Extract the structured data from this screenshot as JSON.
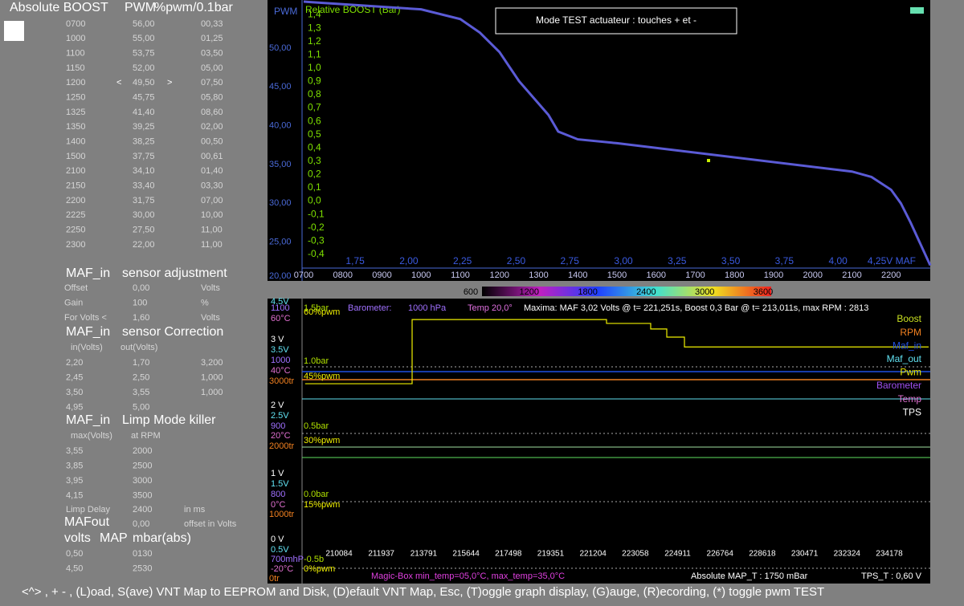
{
  "boost_table": {
    "headers": [
      "Absolute BOOST",
      "PWM",
      "%pwm/0.1bar"
    ],
    "selector": [
      "<",
      ">"
    ],
    "rows": [
      [
        "0700",
        "56,00",
        "00,33"
      ],
      [
        "1000",
        "55,00",
        "01,25"
      ],
      [
        "1100",
        "53,75",
        "03,50"
      ],
      [
        "1150",
        "52,00",
        "05,00"
      ],
      [
        "1200",
        "49,50",
        "07,50"
      ],
      [
        "1250",
        "45,75",
        "05,80"
      ],
      [
        "1325",
        "41,40",
        "08,60"
      ],
      [
        "1350",
        "39,25",
        "02,00"
      ],
      [
        "1400",
        "38,25",
        "00,50"
      ],
      [
        "1500",
        "37,75",
        "00,61"
      ],
      [
        "2100",
        "34,10",
        "01,40"
      ],
      [
        "2150",
        "33,40",
        "03,30"
      ],
      [
        "2200",
        "31,75",
        "07,00"
      ],
      [
        "2225",
        "30,00",
        "10,00"
      ],
      [
        "2250",
        "27,50",
        "11,00"
      ],
      [
        "2300",
        "22,00",
        "11,00"
      ]
    ]
  },
  "maf_adjust": {
    "title": [
      "MAF_in",
      "sensor adjustment"
    ],
    "rows": [
      [
        "Offset",
        "0,00",
        "Volts"
      ],
      [
        "Gain",
        "100",
        "%"
      ],
      [
        "For Volts <",
        "1,60",
        "Volts"
      ]
    ]
  },
  "maf_correction": {
    "title": [
      "MAF_in",
      "sensor Correction"
    ],
    "headers": [
      "in(Volts)",
      "out(Volts)"
    ],
    "rows": [
      [
        "2,20",
        "1,70",
        "3,200"
      ],
      [
        "2,45",
        "2,50",
        "1,000"
      ],
      [
        "3,50",
        "3,55",
        "1,000"
      ],
      [
        "4,95",
        "5,00"
      ]
    ]
  },
  "limp": {
    "title": [
      "MAF_in",
      "Limp Mode killer"
    ],
    "headers": [
      "max(Volts)",
      "at RPM"
    ],
    "rows": [
      [
        "3,55",
        "2000"
      ],
      [
        "3,85",
        "2500"
      ],
      [
        "3,95",
        "3000"
      ],
      [
        "4,15",
        "3500"
      ]
    ],
    "delay": [
      "Limp Delay",
      "2400",
      "in ms"
    ]
  },
  "maf_out": [
    "MAFout",
    "0,00",
    "offset in Volts"
  ],
  "map": {
    "title": [
      "volts",
      "MAP",
      "mbar(abs)"
    ],
    "rows": [
      [
        "0,50",
        "0130"
      ],
      [
        "4,50",
        "2530"
      ]
    ]
  },
  "footer": "<^> , + - , (L)oad, S(ave) VNT Map to EEPROM and Disk, (D)efault VNT Map, Esc, (T)oggle graph display, (G)auge, (R)ecording, (*) toggle pwm TEST",
  "top_chart": {
    "type": "line",
    "mode_box": "Mode TEST actuateur : touches + et  -",
    "y_label": "PWM",
    "y2_label": "Relative BOOST (Bar)",
    "color": "#5b5bd6",
    "x": [
      700,
      1000,
      1100,
      1150,
      1200,
      1250,
      1325,
      1350,
      1400,
      1500,
      2100,
      2150,
      2200,
      2225,
      2250,
      2300
    ],
    "values": [
      56,
      55,
      53.75,
      52,
      49.5,
      45.75,
      41.4,
      39.25,
      38.25,
      37.75,
      34.1,
      33.4,
      31.75,
      30,
      27.5,
      22
    ],
    "xlim": [
      700,
      2300
    ],
    "xticks": [
      {
        "value": 700,
        "label": "0700"
      },
      {
        "value": 800,
        "label": "0800"
      },
      {
        "value": 900,
        "label": "0900"
      },
      1000,
      1100,
      1200,
      1300,
      1400,
      1500,
      1600,
      1700,
      1800,
      1900,
      2000,
      2100,
      2200
    ],
    "x2lim": [
      1.51,
      4.43
    ],
    "x2ticks": [
      {
        "value": 1.75,
        "label": "1,75"
      },
      {
        "value": 2,
        "label": "2,00"
      },
      {
        "value": 2.25,
        "label": "2,25"
      },
      {
        "value": 2.5,
        "label": "2,50"
      },
      {
        "value": 2.75,
        "label": "2,75"
      },
      {
        "value": 3,
        "label": "3,00"
      },
      {
        "value": 3.25,
        "label": "3,25"
      },
      {
        "value": 3.5,
        "label": "3,50"
      },
      {
        "value": 3.75,
        "label": "3,75"
      },
      {
        "value": 4,
        "label": "4,00"
      },
      {
        "value": 4.25,
        "label": "4,25V MAF"
      }
    ],
    "ylim": [
      20,
      56
    ],
    "yticks": [
      {
        "value": 20,
        "label": "20,00"
      },
      {
        "value": 25,
        "label": "25,00"
      },
      {
        "value": 30,
        "label": "30,00"
      },
      {
        "value": 35,
        "label": "35,00"
      },
      {
        "value": 40,
        "label": "40,00"
      },
      {
        "value": 45,
        "label": "45,00"
      },
      {
        "value": 50,
        "label": "50,00"
      }
    ],
    "y2lim": [
      -0.6,
      1.5
    ],
    "y2ticks": [
      {
        "value": 1.4,
        "label": "1,4"
      },
      {
        "value": 1.3,
        "label": "1,3"
      },
      {
        "value": 1.2,
        "label": "1,2"
      },
      {
        "value": 1.1,
        "label": "1,1"
      },
      {
        "value": 1.0,
        "label": "1,0"
      },
      {
        "value": 0.9,
        "label": "0,9"
      },
      {
        "value": 0.8,
        "label": "0,8"
      },
      {
        "value": 0.7,
        "label": "0,7"
      },
      {
        "value": 0.6,
        "label": "0,6"
      },
      {
        "value": 0.5,
        "label": "0,5"
      },
      {
        "value": 0.4,
        "label": "0,4"
      },
      {
        "value": 0.3,
        "label": "0,3"
      },
      {
        "value": 0.2,
        "label": "0,2"
      },
      {
        "value": 0.1,
        "label": "0,1"
      },
      {
        "value": 0,
        "label": "0,0"
      },
      {
        "value": -0.1,
        "label": "-0,1"
      },
      {
        "value": -0.2,
        "label": "-0,2"
      },
      {
        "value": -0.3,
        "label": "-0,3"
      },
      {
        "value": -0.4,
        "label": "-0,4"
      }
    ]
  },
  "colorbar": {
    "ticks": [
      600,
      1200,
      1800,
      2400,
      3000,
      3600
    ]
  },
  "bottom_chart": {
    "header": [
      "Barometer:",
      "1000 hPa",
      "Temp 20,0°",
      "Maxima:  MAF 3,02 Volts @ t=  221,251s, Boost 0,3 Bar @ t=  213,011s, max RPM : 2813"
    ],
    "footer": [
      "Magic-Box  min_temp=05,0°C, max_temp=35,0°C",
      "Absolute MAP_T : 1750 mBar",
      "TPS_T : 0,60 V"
    ],
    "legend": [
      {
        "name": "Boost",
        "color": "#c8e020"
      },
      {
        "name": "RPM",
        "color": "#f08020"
      },
      {
        "name": "Maf_in",
        "color": "#2050e0"
      },
      {
        "name": "Maf_out",
        "color": "#60e0f0"
      },
      {
        "name": "Pwm",
        "color": "#f0f000"
      },
      {
        "name": "Barometer",
        "color": "#a050f0"
      },
      {
        "name": "Temp",
        "color": "#e070d0"
      },
      {
        "name": "TPS",
        "color": "#ffffff"
      }
    ],
    "scales": {
      "tps": [
        "3 V",
        "2 V",
        "1 V",
        "0 V"
      ],
      "maf_out": [
        "4.5V",
        "3.5V",
        "2.5V",
        "1.5V",
        "0.5V"
      ],
      "barometer": [
        "1100",
        "1000",
        "900",
        "800",
        "700mhP"
      ],
      "temp": [
        "60°C",
        "40°C",
        "20°C",
        "0°C",
        "-20°C"
      ],
      "rpm": [
        "3000tr",
        "2000tr",
        "1000tr",
        "0tr"
      ],
      "boost": [
        "1.5bar",
        "1.0bar",
        "0.5bar",
        "0.0bar",
        "-0.5b"
      ]
    },
    "pwm_trace": {
      "color": "#f0f000",
      "x": [
        208600,
        213285,
        213285,
        221797,
        221797,
        223731,
        223731,
        224435,
        224435,
        225209,
        225209,
        235900
      ],
      "values": [
        45,
        45,
        60,
        60,
        59.1,
        59.1,
        57.8,
        57.8,
        55.9,
        55.9,
        53.6,
        53.6
      ]
    },
    "xlim": [
      208536,
      235972
    ],
    "xticks": [
      210084,
      211937,
      213791,
      215644,
      217498,
      219351,
      221204,
      223058,
      224911,
      226764,
      228618,
      230471,
      232324,
      234178
    ],
    "ylim": [
      -1.7,
      64.9
    ],
    "yticks": [
      {
        "value": 60,
        "label": "60%pwm"
      },
      {
        "value": 45,
        "label": "45%pwm"
      },
      {
        "value": 30,
        "label": "30%pwm"
      },
      {
        "value": 15,
        "label": "15%pwm"
      },
      {
        "value": 0,
        "label": "0%pwm"
      }
    ]
  }
}
